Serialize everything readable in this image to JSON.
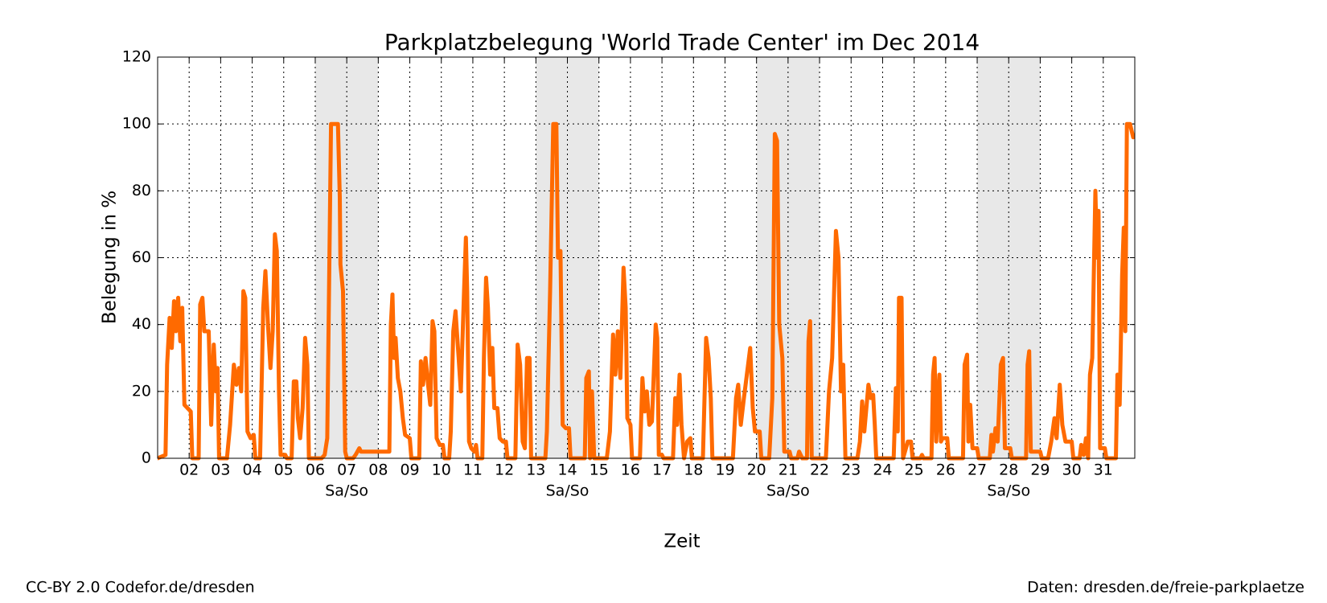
{
  "chart_data": {
    "type": "line",
    "title": "Parkplatzbelegung 'World Trade Center' im Dec 2014",
    "xlabel": "Zeit",
    "ylabel": "Belegung in %",
    "xlim": [
      1,
      32
    ],
    "ylim": [
      0,
      120
    ],
    "xticks": [
      {
        "value": 2,
        "label": "02"
      },
      {
        "value": 3,
        "label": "03"
      },
      {
        "value": 4,
        "label": "04"
      },
      {
        "value": 5,
        "label": "05"
      },
      {
        "value": 6,
        "label": "06"
      },
      {
        "value": 7,
        "label": "07"
      },
      {
        "value": 8,
        "label": "08"
      },
      {
        "value": 9,
        "label": "09"
      },
      10,
      11,
      12,
      13,
      14,
      15,
      16,
      17,
      18,
      19,
      20,
      21,
      22,
      23,
      24,
      25,
      26,
      27,
      28,
      29,
      30,
      31
    ],
    "yticks": [
      0,
      20,
      40,
      60,
      80,
      100,
      120
    ],
    "grid": true,
    "weekends": [
      [
        6,
        8
      ],
      [
        13,
        15
      ],
      [
        20,
        22
      ],
      [
        27,
        29
      ]
    ],
    "weekend_label": "Sa/So",
    "weekend_color": "#e8e8e8",
    "series": [
      {
        "name": "Belegung",
        "color": "#ff6a00",
        "x": [
          1.0,
          1.25,
          1.3,
          1.38,
          1.45,
          1.52,
          1.58,
          1.65,
          1.72,
          1.78,
          1.85,
          1.95,
          2.05,
          2.1,
          2.3,
          2.35,
          2.42,
          2.48,
          2.62,
          2.7,
          2.78,
          2.85,
          2.9,
          2.95,
          3.2,
          3.3,
          3.42,
          3.5,
          3.58,
          3.65,
          3.72,
          3.78,
          3.85,
          3.95,
          4.05,
          4.1,
          4.25,
          4.35,
          4.42,
          4.5,
          4.58,
          4.65,
          4.72,
          4.78,
          4.85,
          4.9,
          5.05,
          5.1,
          5.25,
          5.32,
          5.4,
          5.45,
          5.52,
          5.6,
          5.68,
          5.75,
          5.8,
          6.2,
          6.3,
          6.38,
          6.45,
          6.5,
          6.72,
          6.78,
          6.8,
          6.88,
          6.95,
          7.0,
          7.2,
          7.28,
          7.4,
          7.45,
          8.35,
          8.4,
          8.45,
          8.5,
          8.55,
          8.62,
          8.7,
          8.78,
          8.85,
          9.0,
          9.05,
          9.3,
          9.35,
          9.42,
          9.5,
          9.58,
          9.65,
          9.72,
          9.78,
          9.85,
          9.95,
          10.05,
          10.1,
          10.25,
          10.3,
          10.38,
          10.45,
          10.55,
          10.62,
          10.72,
          10.78,
          10.82,
          10.88,
          10.95,
          11.05,
          11.1,
          11.15,
          11.3,
          11.35,
          11.42,
          11.48,
          11.55,
          11.62,
          11.68,
          11.78,
          11.85,
          11.95,
          12.05,
          12.1,
          12.35,
          12.42,
          12.5,
          12.58,
          12.65,
          12.72,
          12.8,
          12.85,
          13.3,
          13.35,
          13.45,
          13.55,
          13.65,
          13.7,
          13.78,
          13.85,
          13.95,
          14.05,
          14.1,
          14.55,
          14.6,
          14.68,
          14.72,
          14.78,
          14.85,
          15.25,
          15.35,
          15.45,
          15.52,
          15.6,
          15.68,
          15.78,
          15.85,
          15.9,
          16.0,
          16.05,
          16.3,
          16.38,
          16.45,
          16.52,
          16.6,
          16.68,
          16.8,
          16.85,
          16.9,
          17.0,
          17.05,
          17.35,
          17.42,
          17.48,
          17.56,
          17.62,
          17.7,
          17.8,
          17.9,
          17.95,
          18.3,
          18.4,
          18.48,
          18.55,
          18.6,
          19.25,
          19.35,
          19.42,
          19.5,
          19.6,
          19.8,
          19.88,
          19.95,
          20.1,
          20.15,
          20.4,
          20.5,
          20.58,
          20.65,
          20.72,
          20.82,
          20.88,
          21.05,
          21.1,
          21.3,
          21.35,
          21.45,
          21.6,
          21.65,
          21.7,
          21.75,
          22.2,
          22.3,
          22.4,
          22.52,
          22.6,
          22.68,
          22.75,
          22.82,
          23.2,
          23.28,
          23.35,
          23.42,
          23.55,
          23.62,
          23.7,
          23.75,
          23.8,
          24.35,
          24.42,
          24.48,
          24.52,
          24.6,
          24.65,
          24.8,
          24.9,
          24.95,
          25.2,
          25.25,
          25.3,
          25.55,
          25.6,
          25.65,
          25.7,
          25.8,
          25.85,
          25.9,
          26.05,
          26.1,
          26.55,
          26.6,
          26.68,
          26.72,
          26.78,
          26.85,
          27.0,
          27.05,
          27.4,
          27.45,
          27.5,
          27.58,
          27.65,
          27.75,
          27.82,
          27.88,
          28.05,
          28.1,
          28.55,
          28.6,
          28.65,
          28.7,
          29.0,
          29.05,
          29.25,
          29.35,
          29.45,
          29.52,
          29.62,
          29.7,
          29.8,
          30.0,
          30.05,
          30.25,
          30.3,
          30.38,
          30.45,
          30.52,
          30.58,
          30.65,
          30.75,
          30.8,
          30.85,
          30.9,
          31.05,
          31.1,
          31.4,
          31.45,
          31.52,
          31.6,
          31.65,
          31.7,
          31.75,
          31.85,
          31.95
        ],
        "values": [
          0,
          1,
          28,
          42,
          33,
          47,
          38,
          48,
          35,
          45,
          16,
          15,
          14,
          0,
          0,
          46,
          48,
          38,
          38,
          10,
          34,
          20,
          27,
          0,
          0,
          10,
          28,
          22,
          27,
          20,
          50,
          48,
          8,
          6,
          7,
          0,
          0,
          45,
          56,
          40,
          27,
          38,
          67,
          62,
          20,
          1,
          1,
          0,
          0,
          23,
          23,
          12,
          6,
          15,
          36,
          28,
          0,
          0,
          1,
          6,
          60,
          100,
          100,
          78,
          58,
          50,
          2,
          0,
          0,
          1,
          3,
          2,
          2,
          40,
          49,
          30,
          36,
          24,
          20,
          12,
          7,
          6,
          0,
          0,
          29,
          22,
          30,
          22,
          16,
          41,
          38,
          6,
          4,
          4,
          0,
          0,
          8,
          38,
          44,
          30,
          20,
          50,
          66,
          50,
          5,
          3,
          2,
          4,
          0,
          0,
          30,
          54,
          45,
          25,
          33,
          15,
          15,
          6,
          5,
          5,
          0,
          0,
          34,
          28,
          5,
          3,
          30,
          30,
          0,
          0,
          8,
          50,
          100,
          100,
          60,
          62,
          10,
          9,
          9,
          0,
          0,
          24,
          26,
          0,
          20,
          0,
          0,
          8,
          37,
          25,
          38,
          24,
          57,
          45,
          12,
          10,
          0,
          0,
          24,
          14,
          20,
          10,
          11,
          40,
          36,
          1,
          1,
          0,
          0,
          18,
          10,
          25,
          10,
          0,
          5,
          6,
          0,
          0,
          36,
          30,
          18,
          0,
          0,
          18,
          22,
          10,
          18,
          33,
          15,
          8,
          8,
          0,
          0,
          18,
          97,
          95,
          40,
          30,
          2,
          2,
          0,
          0,
          2,
          0,
          0,
          35,
          41,
          0,
          0,
          20,
          30,
          68,
          60,
          20,
          28,
          0,
          0,
          5,
          17,
          8,
          22,
          18,
          19,
          10,
          0,
          0,
          21,
          8,
          48,
          48,
          0,
          5,
          5,
          0,
          0,
          1,
          0,
          0,
          25,
          30,
          5,
          25,
          5,
          6,
          6,
          0,
          0,
          28,
          31,
          5,
          16,
          3,
          3,
          0,
          0,
          7,
          2,
          9,
          5,
          28,
          30,
          3,
          3,
          0,
          0,
          28,
          32,
          2,
          2,
          0,
          0,
          5,
          12,
          6,
          22,
          10,
          5,
          5,
          0,
          0,
          4,
          1,
          6,
          0,
          25,
          30,
          80,
          60,
          74,
          3,
          3,
          0,
          0,
          25,
          16,
          55,
          69,
          38,
          100,
          100,
          96
        ]
      }
    ]
  },
  "footer": {
    "left": "CC-BY 2.0 Codefor.de/dresden",
    "right": "Daten: dresden.de/freie-parkplaetze"
  }
}
